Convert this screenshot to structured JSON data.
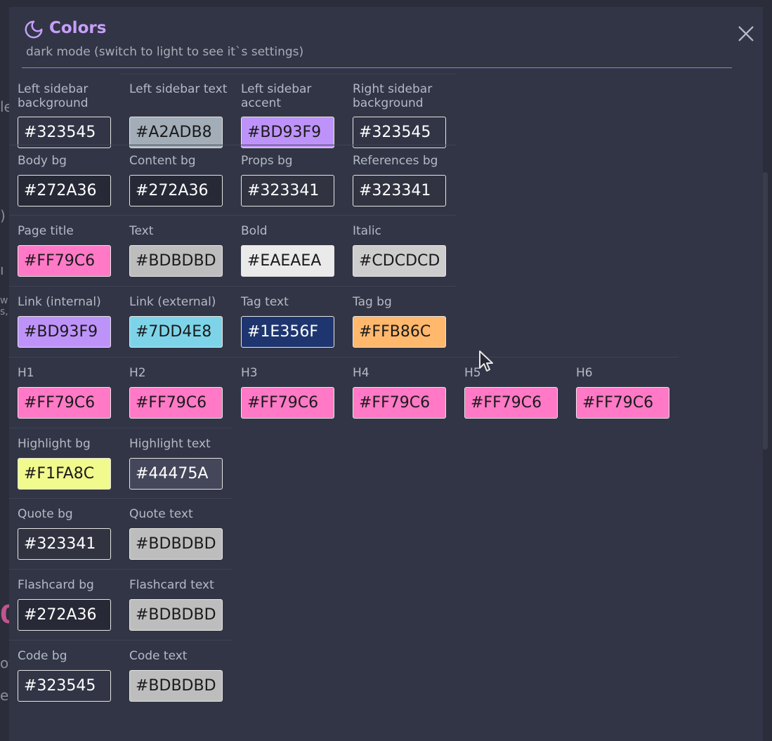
{
  "modal": {
    "title": "Colors",
    "subtitle": "dark mode (switch to light to see it`s settings)"
  },
  "rows": [
    {
      "fields": [
        {
          "label": "Left sidebar background",
          "value": "#323545",
          "bg": "#323545",
          "fg": "light"
        },
        {
          "label": "Left sidebar text",
          "value": "#A2ADB8",
          "bg": "#A2ADB8",
          "fg": "dark"
        },
        {
          "label": "Left sidebar accent",
          "value": "#BD93F9",
          "bg": "#BD93F9",
          "fg": "dark"
        },
        {
          "label": "Right sidebar background",
          "value": "#323545",
          "bg": "#323545",
          "fg": "light"
        }
      ]
    },
    {
      "fields": [
        {
          "label": "Body bg",
          "value": "#272A36",
          "bg": "#272A36",
          "fg": "light"
        },
        {
          "label": "Content bg",
          "value": "#272A36",
          "bg": "#272A36",
          "fg": "light"
        },
        {
          "label": "Props bg",
          "value": "#323341",
          "bg": "#323341",
          "fg": "light"
        },
        {
          "label": "References bg",
          "value": "#323341",
          "bg": "#323341",
          "fg": "light"
        }
      ]
    },
    {
      "fields": [
        {
          "label": "Page title",
          "value": "#FF79C6",
          "bg": "#FF79C6",
          "fg": "dark"
        },
        {
          "label": "Text",
          "value": "#BDBDBD",
          "bg": "#BDBDBD",
          "fg": "dark"
        },
        {
          "label": "Bold",
          "value": "#EAEAEA",
          "bg": "#EAEAEA",
          "fg": "dark"
        },
        {
          "label": "Italic",
          "value": "#CDCDCD",
          "bg": "#CDCDCD",
          "fg": "dark"
        }
      ]
    },
    {
      "fields": [
        {
          "label": "Link (internal)",
          "value": "#BD93F9",
          "bg": "#BD93F9",
          "fg": "dark"
        },
        {
          "label": "Link (external)",
          "value": "#7DD4E8",
          "bg": "#7DD4E8",
          "fg": "dark"
        },
        {
          "label": "Tag text",
          "value": "#1E356F",
          "bg": "#1E356F",
          "fg": "light"
        },
        {
          "label": "Tag bg",
          "value": "#FFB86C",
          "bg": "#FFB86C",
          "fg": "dark"
        }
      ]
    },
    {
      "fields": [
        {
          "label": "H1",
          "value": "#FF79C6",
          "bg": "#FF79C6",
          "fg": "dark"
        },
        {
          "label": "H2",
          "value": "#FF79C6",
          "bg": "#FF79C6",
          "fg": "dark"
        },
        {
          "label": "H3",
          "value": "#FF79C6",
          "bg": "#FF79C6",
          "fg": "dark"
        },
        {
          "label": "H4",
          "value": "#FF79C6",
          "bg": "#FF79C6",
          "fg": "dark"
        },
        {
          "label": "H5",
          "value": "#FF79C6",
          "bg": "#FF79C6",
          "fg": "dark"
        },
        {
          "label": "H6",
          "value": "#FF79C6",
          "bg": "#FF79C6",
          "fg": "dark"
        }
      ]
    },
    {
      "fields": [
        {
          "label": "Highlight bg",
          "value": "#F1FA8C",
          "bg": "#F1FA8C",
          "fg": "dark"
        },
        {
          "label": "Highlight text",
          "value": "#44475A",
          "bg": "#44475A",
          "fg": "light"
        }
      ]
    },
    {
      "fields": [
        {
          "label": "Quote bg",
          "value": "#323341",
          "bg": "#323341",
          "fg": "light"
        },
        {
          "label": "Quote text",
          "value": "#BDBDBD",
          "bg": "#BDBDBD",
          "fg": "dark"
        }
      ]
    },
    {
      "fields": [
        {
          "label": "Flashcard bg",
          "value": "#272A36",
          "bg": "#272A36",
          "fg": "light"
        },
        {
          "label": "Flashcard text",
          "value": "#BDBDBD",
          "bg": "#BDBDBD",
          "fg": "dark"
        }
      ]
    },
    {
      "fields": [
        {
          "label": "Code bg",
          "value": "#323545",
          "bg": "#323545",
          "fg": "light"
        },
        {
          "label": "Code text",
          "value": "#BDBDBD",
          "bg": "#BDBDBD",
          "fg": "dark"
        }
      ]
    }
  ]
}
